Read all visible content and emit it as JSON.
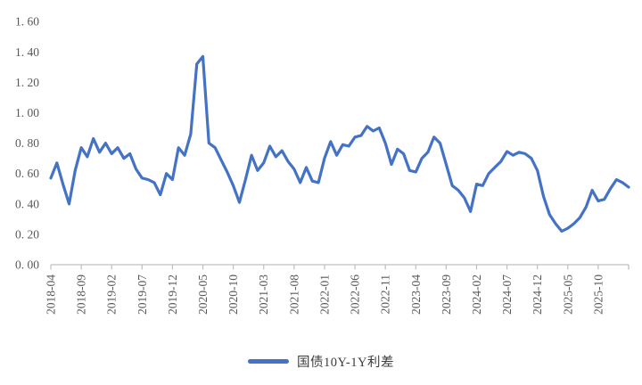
{
  "chart_data": {
    "type": "line",
    "title": "",
    "xlabel": "",
    "ylabel": "",
    "ylim": [
      0.0,
      1.6
    ],
    "y_tick_step": 0.2,
    "y_tick_labels": [
      "0. 00",
      "0. 20",
      "0. 40",
      "0. 60",
      "0. 80",
      "1. 00",
      "1. 20",
      "1. 40",
      "1. 60"
    ],
    "x_tick_interval_months": 5,
    "x_tick_labels": [
      "2018-04",
      "2018-09",
      "2019-02",
      "2019-07",
      "2019-12",
      "2020-05",
      "2020-10",
      "2021-03",
      "2021-08",
      "2022-01",
      "2022-06",
      "2022-11",
      "2023-04",
      "2023-09",
      "2024-02",
      "2024-07",
      "2024-12",
      "2025-05",
      "2025-10"
    ],
    "grid": false,
    "legend_position": "bottom",
    "axis_color": "#BFBFBF",
    "label_color": "#595959",
    "x": [
      "2018-04",
      "2018-05",
      "2018-06",
      "2018-07",
      "2018-08",
      "2018-09",
      "2018-10",
      "2018-11",
      "2018-12",
      "2019-01",
      "2019-02",
      "2019-03",
      "2019-04",
      "2019-05",
      "2019-06",
      "2019-07",
      "2019-08",
      "2019-09",
      "2019-10",
      "2019-11",
      "2019-12",
      "2020-01",
      "2020-02",
      "2020-03",
      "2020-04",
      "2020-05",
      "2020-06",
      "2020-07",
      "2020-08",
      "2020-09",
      "2020-10",
      "2020-11",
      "2020-12",
      "2021-01",
      "2021-02",
      "2021-03",
      "2021-04",
      "2021-05",
      "2021-06",
      "2021-07",
      "2021-08",
      "2021-09",
      "2021-10",
      "2021-11",
      "2021-12",
      "2022-01",
      "2022-02",
      "2022-03",
      "2022-04",
      "2022-05",
      "2022-06",
      "2022-07",
      "2022-08",
      "2022-09",
      "2022-10",
      "2022-11",
      "2022-12",
      "2023-01",
      "2023-02",
      "2023-03",
      "2023-04",
      "2023-05",
      "2023-06",
      "2023-07",
      "2023-08",
      "2023-09",
      "2023-10",
      "2023-11",
      "2023-12",
      "2024-01",
      "2024-02",
      "2024-03",
      "2024-04",
      "2024-05",
      "2024-06",
      "2024-07",
      "2024-08",
      "2024-09",
      "2024-10",
      "2024-11",
      "2024-12",
      "2025-01",
      "2025-02",
      "2025-03",
      "2025-04",
      "2025-05",
      "2025-06",
      "2025-07",
      "2025-08",
      "2025-09",
      "2025-10",
      "2025-11",
      "2025-12",
      "2026-01",
      "2026-02",
      "2026-03"
    ],
    "series": [
      {
        "name": "国债10Y-1Y利差",
        "color": "#4472C4",
        "values": [
          0.57,
          0.67,
          0.53,
          0.4,
          0.62,
          0.77,
          0.71,
          0.83,
          0.74,
          0.8,
          0.73,
          0.77,
          0.7,
          0.73,
          0.63,
          0.57,
          0.56,
          0.54,
          0.46,
          0.6,
          0.56,
          0.77,
          0.72,
          0.86,
          1.32,
          1.37,
          0.8,
          0.77,
          0.69,
          0.61,
          0.52,
          0.41,
          0.56,
          0.72,
          0.62,
          0.67,
          0.78,
          0.71,
          0.75,
          0.68,
          0.63,
          0.54,
          0.64,
          0.55,
          0.54,
          0.7,
          0.81,
          0.72,
          0.79,
          0.78,
          0.84,
          0.85,
          0.91,
          0.88,
          0.9,
          0.8,
          0.66,
          0.76,
          0.73,
          0.62,
          0.61,
          0.7,
          0.74,
          0.84,
          0.8,
          0.66,
          0.52,
          0.49,
          0.44,
          0.35,
          0.53,
          0.52,
          0.6,
          0.64,
          0.68,
          0.745,
          0.72,
          0.74,
          0.73,
          0.7,
          0.62,
          0.45,
          0.33,
          0.27,
          0.22,
          0.24,
          0.27,
          0.31,
          0.38,
          0.49,
          0.42,
          0.43,
          0.5,
          0.56,
          0.54,
          0.51
        ]
      }
    ]
  },
  "legend": {
    "label": "国债10Y-1Y利差"
  }
}
